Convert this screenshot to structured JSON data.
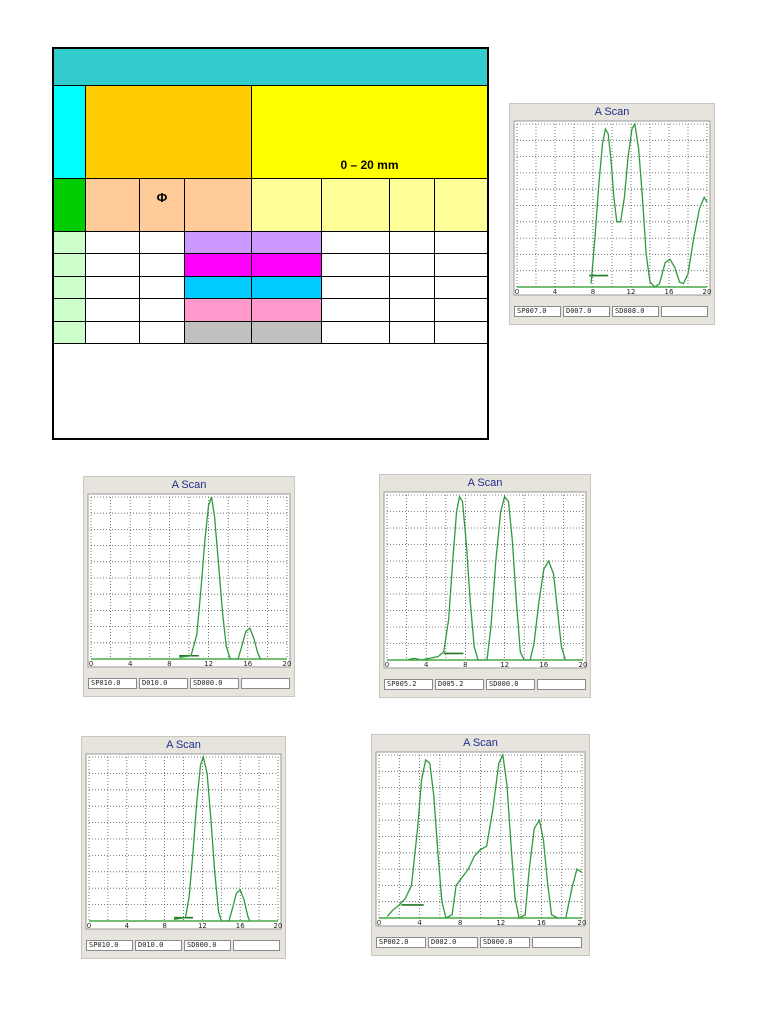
{
  "table": {
    "range_label": "0 – 20 mm",
    "phi_symbol": "Φ",
    "colors": {
      "header_teal": "#33cccc",
      "cyan": "#00ffff",
      "orange": "#ffcc00",
      "yellow": "#ffff00",
      "green": "#00cc00",
      "peach": "#ffcc99",
      "pale_yellow": "#ffff99",
      "pale_green": "#ccffcc",
      "row_colors": [
        "#cc99ff",
        "#ff00ff",
        "#00ccff",
        "#ff99cc",
        "#c0c0c0"
      ]
    }
  },
  "scans": [
    {
      "title": "A Scan",
      "status": [
        "SP007.0",
        "D007.0",
        "SD008.0",
        ""
      ],
      "ticks": [
        "0",
        "4",
        "8",
        "12",
        "16",
        "20"
      ],
      "baseline": [
        [
          0,
          0
        ],
        [
          20,
          0
        ]
      ],
      "gate": [
        [
          7.6,
          0.07
        ],
        [
          9.6,
          0.07
        ]
      ],
      "trace": [
        [
          7.8,
          0.02
        ],
        [
          8.2,
          0.3
        ],
        [
          8.6,
          0.62
        ],
        [
          9.0,
          0.88
        ],
        [
          9.3,
          0.97
        ],
        [
          9.6,
          0.94
        ],
        [
          9.9,
          0.78
        ],
        [
          10.2,
          0.55
        ],
        [
          10.5,
          0.4
        ],
        [
          10.9,
          0.4
        ],
        [
          11.3,
          0.55
        ],
        [
          11.7,
          0.8
        ],
        [
          12.1,
          0.97
        ],
        [
          12.4,
          1.0
        ],
        [
          12.8,
          0.85
        ],
        [
          13.2,
          0.55
        ],
        [
          13.6,
          0.2
        ],
        [
          14.0,
          0.03
        ],
        [
          14.5,
          0.0
        ],
        [
          15.0,
          0.02
        ],
        [
          15.6,
          0.15
        ],
        [
          16.1,
          0.17
        ],
        [
          16.6,
          0.12
        ],
        [
          17.1,
          0.03
        ],
        [
          17.5,
          0.02
        ],
        [
          18.0,
          0.08
        ],
        [
          18.6,
          0.3
        ],
        [
          19.2,
          0.48
        ],
        [
          19.7,
          0.55
        ],
        [
          20.0,
          0.52
        ]
      ]
    },
    {
      "title": "A Scan",
      "status": [
        "SP010.0",
        "D010.0",
        "SD000.0",
        ""
      ],
      "ticks": [
        "0",
        "4",
        "8",
        "12",
        "16",
        "20"
      ],
      "baseline": [
        [
          0,
          0
        ],
        [
          20,
          0
        ]
      ],
      "gate": [
        [
          9.0,
          0.02
        ],
        [
          11.0,
          0.02
        ]
      ],
      "trace": [
        [
          9.0,
          0.01
        ],
        [
          10.2,
          0.02
        ],
        [
          10.8,
          0.15
        ],
        [
          11.2,
          0.42
        ],
        [
          11.6,
          0.72
        ],
        [
          12.0,
          0.95
        ],
        [
          12.3,
          1.0
        ],
        [
          12.6,
          0.88
        ],
        [
          13.0,
          0.6
        ],
        [
          13.4,
          0.3
        ],
        [
          13.8,
          0.08
        ],
        [
          14.2,
          0.0
        ],
        [
          15.0,
          0.0
        ],
        [
          15.4,
          0.08
        ],
        [
          15.8,
          0.17
        ],
        [
          16.2,
          0.19
        ],
        [
          16.6,
          0.13
        ],
        [
          17.0,
          0.04
        ],
        [
          17.3,
          0.0
        ]
      ]
    },
    {
      "title": "A Scan",
      "status": [
        "SP005.2",
        "D005.2",
        "SD000.0",
        ""
      ],
      "ticks": [
        "0",
        "4",
        "8",
        "12",
        "16",
        "20"
      ],
      "baseline": [
        [
          0,
          0
        ],
        [
          20,
          0
        ]
      ],
      "gate": [
        [
          5.8,
          0.04
        ],
        [
          7.8,
          0.04
        ]
      ],
      "trace": [
        [
          2.0,
          0.0
        ],
        [
          2.8,
          0.01
        ],
        [
          3.5,
          0.0
        ],
        [
          5.2,
          0.02
        ],
        [
          5.8,
          0.05
        ],
        [
          6.3,
          0.25
        ],
        [
          6.7,
          0.6
        ],
        [
          7.1,
          0.9
        ],
        [
          7.4,
          0.99
        ],
        [
          7.7,
          0.96
        ],
        [
          8.1,
          0.7
        ],
        [
          8.5,
          0.35
        ],
        [
          8.9,
          0.08
        ],
        [
          9.3,
          0.0
        ],
        [
          10.2,
          0.0
        ],
        [
          10.6,
          0.2
        ],
        [
          11.1,
          0.6
        ],
        [
          11.6,
          0.9
        ],
        [
          12.0,
          0.99
        ],
        [
          12.4,
          0.96
        ],
        [
          12.8,
          0.72
        ],
        [
          13.2,
          0.35
        ],
        [
          13.6,
          0.05
        ],
        [
          14.0,
          0.0
        ],
        [
          14.6,
          0.0
        ],
        [
          15.0,
          0.1
        ],
        [
          15.5,
          0.35
        ],
        [
          16.0,
          0.55
        ],
        [
          16.5,
          0.6
        ],
        [
          17.0,
          0.52
        ],
        [
          17.4,
          0.3
        ],
        [
          17.8,
          0.08
        ],
        [
          18.2,
          0.0
        ]
      ]
    },
    {
      "title": "A Scan",
      "status": [
        "SP010.0",
        "D010.0",
        "SD000.0",
        ""
      ],
      "ticks": [
        "0",
        "4",
        "8",
        "12",
        "16",
        "20"
      ],
      "baseline": [
        [
          0,
          0
        ],
        [
          20,
          0
        ]
      ],
      "gate": [
        [
          9.0,
          0.02
        ],
        [
          11.0,
          0.02
        ]
      ],
      "trace": [
        [
          9.0,
          0.01
        ],
        [
          10.2,
          0.02
        ],
        [
          10.6,
          0.15
        ],
        [
          11.0,
          0.42
        ],
        [
          11.4,
          0.72
        ],
        [
          11.8,
          0.95
        ],
        [
          12.1,
          1.0
        ],
        [
          12.5,
          0.9
        ],
        [
          12.9,
          0.62
        ],
        [
          13.3,
          0.3
        ],
        [
          13.7,
          0.06
        ],
        [
          14.0,
          0.0
        ],
        [
          14.8,
          0.0
        ],
        [
          15.2,
          0.08
        ],
        [
          15.6,
          0.17
        ],
        [
          16.0,
          0.19
        ],
        [
          16.4,
          0.13
        ],
        [
          16.8,
          0.03
        ],
        [
          17.0,
          0.0
        ]
      ]
    },
    {
      "title": "A Scan",
      "status": [
        "SP002.0",
        "D002.0",
        "SD000.0",
        ""
      ],
      "ticks": [
        "0",
        "4",
        "8",
        "12",
        "16",
        "20"
      ],
      "baseline": [
        [
          0,
          0
        ],
        [
          20,
          0
        ]
      ],
      "gate": [
        [
          2.2,
          0.08
        ],
        [
          4.4,
          0.08
        ]
      ],
      "trace": [
        [
          0.8,
          0.01
        ],
        [
          1.4,
          0.05
        ],
        [
          2.0,
          0.08
        ],
        [
          2.6,
          0.12
        ],
        [
          3.2,
          0.2
        ],
        [
          3.8,
          0.55
        ],
        [
          4.2,
          0.85
        ],
        [
          4.6,
          0.97
        ],
        [
          5.0,
          0.95
        ],
        [
          5.4,
          0.75
        ],
        [
          5.8,
          0.4
        ],
        [
          6.2,
          0.1
        ],
        [
          6.6,
          0.0
        ],
        [
          7.2,
          0.02
        ],
        [
          7.6,
          0.2
        ],
        [
          8.2,
          0.25
        ],
        [
          8.8,
          0.3
        ],
        [
          9.4,
          0.38
        ],
        [
          10.0,
          0.42
        ],
        [
          10.6,
          0.44
        ],
        [
          11.2,
          0.66
        ],
        [
          11.8,
          0.95
        ],
        [
          12.2,
          1.0
        ],
        [
          12.6,
          0.82
        ],
        [
          13.0,
          0.45
        ],
        [
          13.4,
          0.12
        ],
        [
          13.8,
          0.0
        ],
        [
          14.4,
          0.02
        ],
        [
          14.8,
          0.3
        ],
        [
          15.3,
          0.55
        ],
        [
          15.8,
          0.6
        ],
        [
          16.2,
          0.48
        ],
        [
          16.6,
          0.22
        ],
        [
          17.0,
          0.02
        ],
        [
          17.6,
          0.0
        ],
        [
          18.4,
          0.0
        ],
        [
          19.0,
          0.18
        ],
        [
          19.5,
          0.3
        ],
        [
          20.0,
          0.28
        ]
      ]
    }
  ]
}
